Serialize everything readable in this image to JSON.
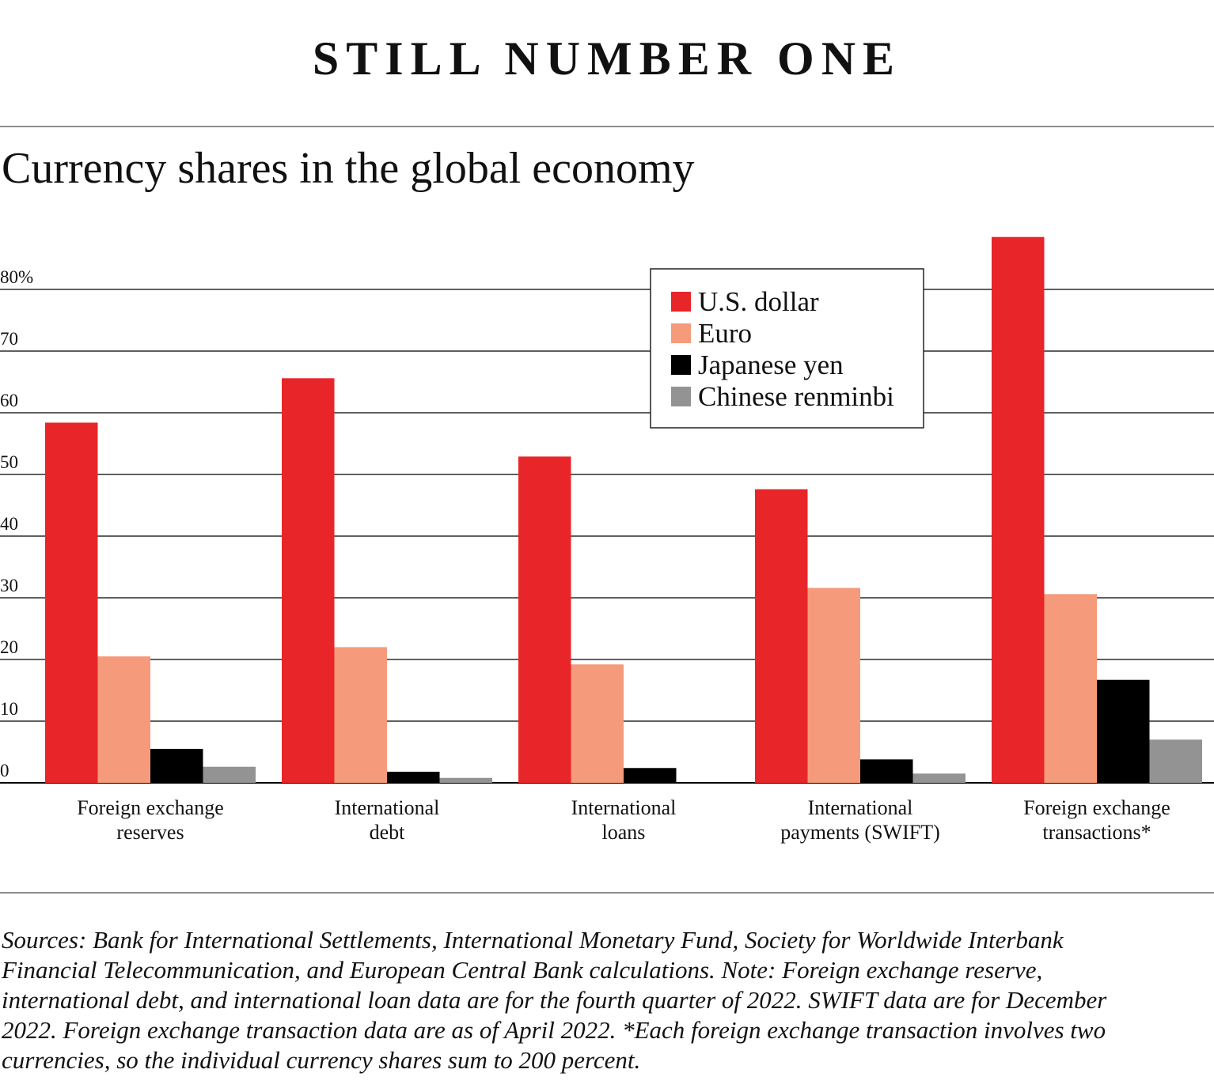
{
  "headline": "STILL NUMBER ONE",
  "notes": "Sources: Bank for International Settlements, International Monetary Fund, Society for Worldwide Interbank\nFinancial Telecommunication, and European Central Bank calculations. Note: Foreign exchange reserve,\ninternational debt, and international loan data are for the fourth quarter of 2022. SWIFT data are for December\n2022. Foreign exchange transaction data are as of April 2022. *Each foreign exchange transaction involves two\ncurrencies, so the individual currency shares sum to 200 percent.",
  "chart_data": {
    "type": "bar",
    "title": "Currency shares in the global economy",
    "categories": [
      [
        "Foreign exchange",
        "reserves"
      ],
      [
        "International",
        "debt"
      ],
      [
        "International",
        "loans"
      ],
      [
        "International",
        "payments (SWIFT)"
      ],
      [
        "Foreign exchange",
        "transactions*"
      ]
    ],
    "series": [
      {
        "name": "U.S. dollar",
        "color": "#e8262a",
        "values": [
          58.4,
          65.6,
          52.9,
          47.6,
          88.5
        ]
      },
      {
        "name": "Euro",
        "color": "#f59b7b",
        "values": [
          20.5,
          22.0,
          19.2,
          31.6,
          30.6
        ]
      },
      {
        "name": "Japanese yen",
        "color": "#000000",
        "values": [
          5.5,
          1.8,
          2.4,
          3.8,
          16.7
        ]
      },
      {
        "name": "Chinese renminbi",
        "color": "#939393",
        "values": [
          2.6,
          0.8,
          0.0,
          1.5,
          7.0
        ]
      }
    ],
    "yticks": [
      0,
      10,
      20,
      30,
      40,
      50,
      60,
      70,
      80
    ],
    "ytick_labels": [
      "0",
      "10",
      "20",
      "30",
      "40",
      "50",
      "60",
      "70",
      "80%"
    ],
    "ylim": [
      0,
      90
    ],
    "grid": true,
    "legend": "top-center"
  }
}
